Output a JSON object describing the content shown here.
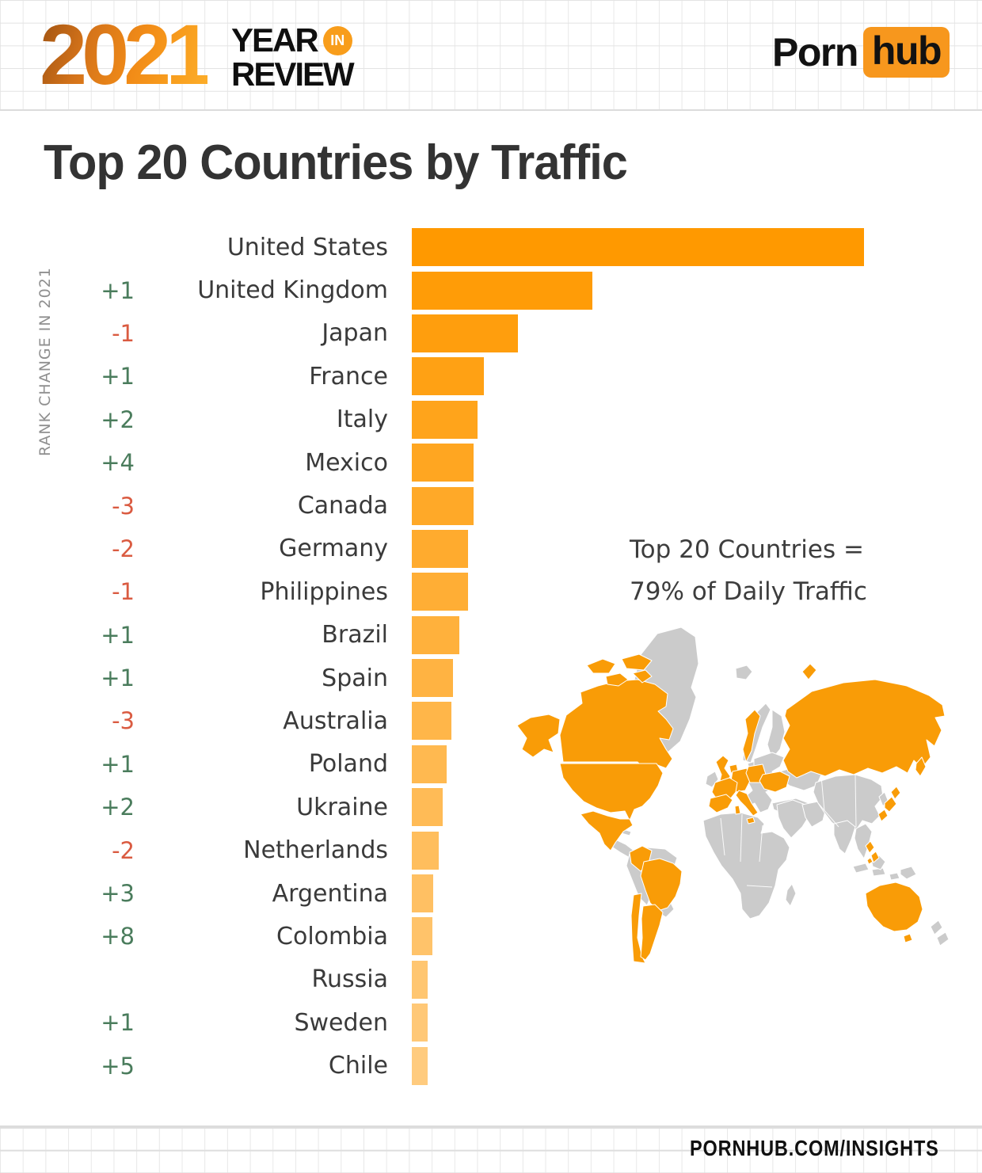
{
  "header": {
    "year_badge": {
      "year": "2021",
      "line1": "YEAR",
      "in_label": "IN",
      "line2": "REVIEW"
    },
    "brand": {
      "part1": "Porn",
      "part2": "hub",
      "box_color": "#f7971d"
    }
  },
  "title": "Top 20 Countries by Traffic",
  "chart": {
    "axis_label": "RANK CHANGE IN 2021",
    "rank_up_color": "#4a7c5c",
    "rank_down_color": "#da5b41",
    "rows": [
      {
        "country": "United States",
        "rank_change": "",
        "pct": 100,
        "color": "#FF9900"
      },
      {
        "country": "United Kingdom",
        "rank_change": "+1",
        "pct": 40,
        "color": "#FF9C07"
      },
      {
        "country": "Japan",
        "rank_change": "-1",
        "pct": 23.5,
        "color": "#FF9E0D"
      },
      {
        "country": "France",
        "rank_change": "+1",
        "pct": 16,
        "color": "#FFA114"
      },
      {
        "country": "Italy",
        "rank_change": "+2",
        "pct": 14.5,
        "color": "#FFA41B"
      },
      {
        "country": "Mexico",
        "rank_change": "+4",
        "pct": 13.7,
        "color": "#FFA621"
      },
      {
        "country": "Canada",
        "rank_change": "-3",
        "pct": 13.7,
        "color": "#FFA928"
      },
      {
        "country": "Germany",
        "rank_change": "-2",
        "pct": 12.4,
        "color": "#FFAB2E"
      },
      {
        "country": "Philippines",
        "rank_change": "-1",
        "pct": 12.4,
        "color": "#FFAE35"
      },
      {
        "country": "Brazil",
        "rank_change": "+1",
        "pct": 10.5,
        "color": "#FFB13C"
      },
      {
        "country": "Spain",
        "rank_change": "+1",
        "pct": 9.1,
        "color": "#FFB342"
      },
      {
        "country": "Australia",
        "rank_change": "-3",
        "pct": 8.8,
        "color": "#FFB649"
      },
      {
        "country": "Poland",
        "rank_change": "+1",
        "pct": 7.7,
        "color": "#FFB950"
      },
      {
        "country": "Ukraine",
        "rank_change": "+2",
        "pct": 6.8,
        "color": "#FFBB56"
      },
      {
        "country": "Netherlands",
        "rank_change": "-2",
        "pct": 6.0,
        "color": "#FFBE5D"
      },
      {
        "country": "Argentina",
        "rank_change": "+3",
        "pct": 4.7,
        "color": "#FFC063"
      },
      {
        "country": "Colombia",
        "rank_change": "+8",
        "pct": 4.6,
        "color": "#FFC36A"
      },
      {
        "country": "Russia",
        "rank_change": "",
        "pct": 3.5,
        "color": "#FFC671"
      },
      {
        "country": "Sweden",
        "rank_change": "+1",
        "pct": 3.5,
        "color": "#FFC877"
      },
      {
        "country": "Chile",
        "rank_change": "+5",
        "pct": 3.5,
        "color": "#FFCB7E"
      }
    ]
  },
  "callout": {
    "line1": "Top 20 Countries =",
    "line2": "79% of Daily Traffic"
  },
  "map": {
    "highlight_color": "#F99C07",
    "base_color": "#CBCBCB"
  },
  "footer": {
    "url": "PORNHUB.COM/INSIGHTS"
  },
  "chart_data": {
    "type": "bar",
    "orientation": "horizontal",
    "title": "Top 20 Countries by Traffic",
    "categories": [
      "United States",
      "United Kingdom",
      "Japan",
      "France",
      "Italy",
      "Mexico",
      "Canada",
      "Germany",
      "Philippines",
      "Brazil",
      "Spain",
      "Australia",
      "Poland",
      "Ukraine",
      "Netherlands",
      "Argentina",
      "Colombia",
      "Russia",
      "Sweden",
      "Chile"
    ],
    "values": [
      100,
      40,
      23.5,
      16,
      14.5,
      13.7,
      13.7,
      12.4,
      12.4,
      10.5,
      9.1,
      8.8,
      7.7,
      6.8,
      6.0,
      4.7,
      4.6,
      3.5,
      3.5,
      3.5
    ],
    "value_unit": "relative bar length, % of longest bar (no absolute axis labels shown)",
    "secondary_axis_label": "RANK CHANGE IN 2021",
    "rank_changes": [
      "",
      "+1",
      "-1",
      "+1",
      "+2",
      "+4",
      "-3",
      "-2",
      "-1",
      "+1",
      "+1",
      "-3",
      "+1",
      "+2",
      "-2",
      "+3",
      "+8",
      "",
      "+1",
      "+5"
    ],
    "annotation": "Top 20 Countries = 79% of Daily Traffic",
    "bar_color_range": [
      "#FF9900",
      "#FFCB7E"
    ],
    "grid": false,
    "legend": false
  }
}
